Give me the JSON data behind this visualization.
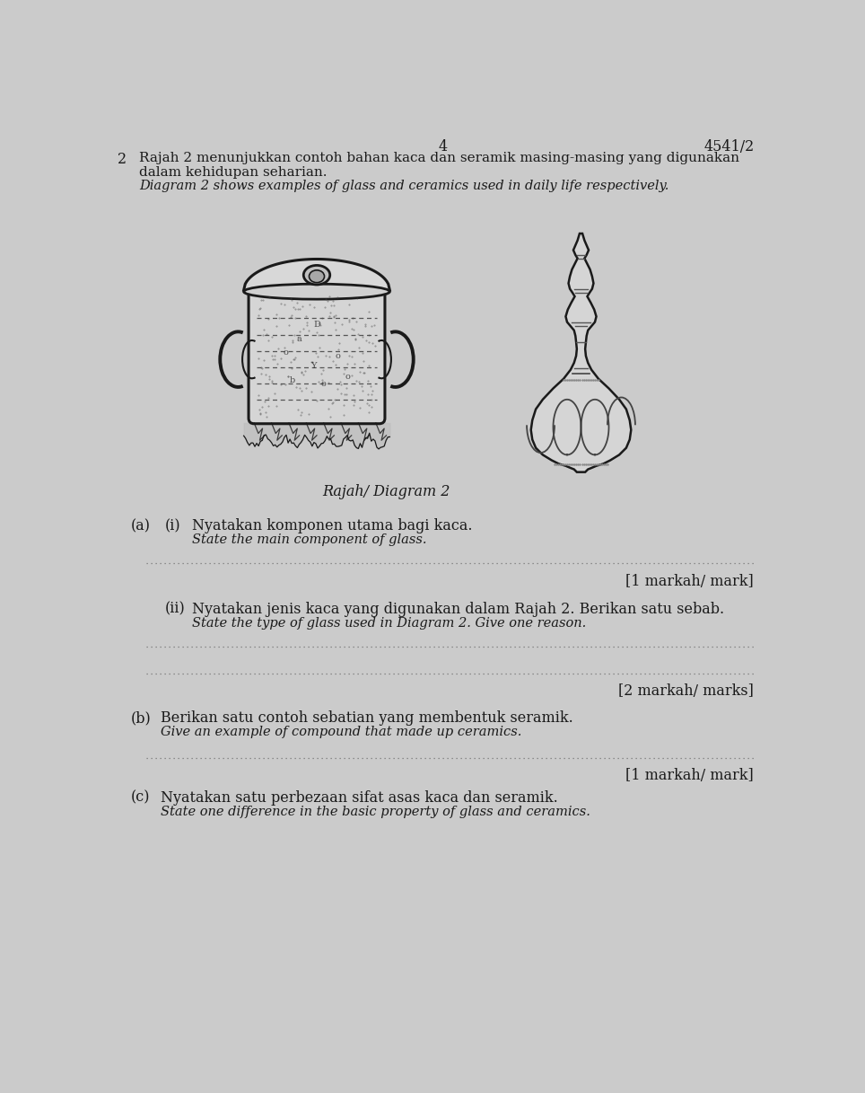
{
  "bg_color": "#cbcbcb",
  "page_number": "4",
  "paper_code": "4541/2",
  "question_number": "2",
  "header_line1_ms": "Rajah 2 menunjukkan contoh bahan kaca dan seramik masing-masing yang digunakan",
  "header_line2_ms": "dalam kehidupan seharian.",
  "header_en": "Diagram 2 shows examples of glass and ceramics used in daily life respectively.",
  "diagram_label": "Rajah/ Diagram 2",
  "qa_label": "(a)",
  "qa_i_num": "(i)",
  "qa_i_ms": "Nyatakan komponen utama bagi kaca.",
  "qa_i_en": "State the main component of glass.",
  "qa_i_mark": "[1 markah/ mark]",
  "qa_ii_num": "(ii)",
  "qa_ii_ms": "Nyatakan jenis kaca yang digunakan dalam Rajah 2. Berikan satu sebab.",
  "qa_ii_en": "State the type of glass used in Diagram 2. Give one reason.",
  "qa_ii_mark": "[2 markah/ marks]",
  "qb_label": "(b)",
  "qb_ms": "Berikan satu contoh sebatian yang membentuk seramik.",
  "qb_en": "Give an example of compound that made up ceramics.",
  "qb_mark": "[1 markah/ mark]",
  "qc_label": "(c)",
  "qc_ms": "Nyatakan satu perbezaan sifat asas kaca dan seramik.",
  "qc_en": "State one difference in the basic property of glass and ceramics.",
  "dot_color": "#777777",
  "text_color": "#1a1a1a",
  "line_color": "#1a1a1a"
}
